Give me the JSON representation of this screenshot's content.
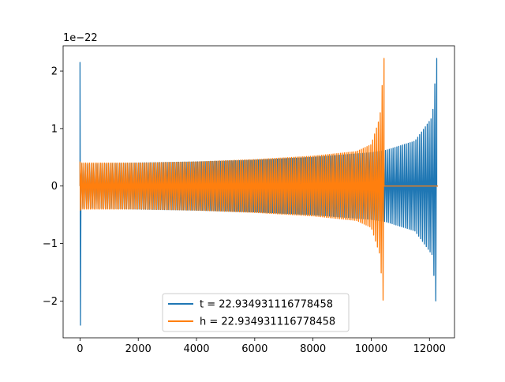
{
  "chart_data": {
    "type": "line",
    "title": "",
    "xlabel": "",
    "ylabel": "",
    "y_offset_label": "1e−22",
    "xlim": [
      -580,
      12860
    ],
    "ylim": [
      -2.64,
      2.44
    ],
    "x_ticks": [
      0,
      2000,
      4000,
      6000,
      8000,
      10000,
      12000
    ],
    "x_tick_labels": [
      "0",
      "2000",
      "4000",
      "6000",
      "8000",
      "10000",
      "12000"
    ],
    "y_ticks": [
      2,
      1,
      0,
      -1,
      -2
    ],
    "y_tick_labels": [
      "2",
      "1",
      "0",
      "−1",
      "−2"
    ],
    "grid": false,
    "legend_position": "lower center",
    "series": [
      {
        "name": "t = 22.934931116778458",
        "color": "#1f77b4",
        "signal": {
          "initial_spike": {
            "x": 0,
            "y_max": 2.15,
            "y_min": -2.42
          },
          "chirp_start_x": 0,
          "merger_x": 12250,
          "end_x": 12290,
          "amplitude_envelope_x": [
            0,
            1800,
            4000,
            6000,
            8000,
            10000,
            10500,
            11500,
            12100,
            12250
          ],
          "amplitude_envelope_y": [
            0.38,
            0.4,
            0.42,
            0.45,
            0.5,
            0.58,
            0.62,
            0.78,
            1.2,
            2.22
          ],
          "post_merger_value": 0
        }
      },
      {
        "name": "h = 22.934931116778458",
        "color": "#ff7f0e",
        "signal": {
          "initial_spike": {
            "x": 0,
            "y_max": 0.42,
            "y_min": -0.42
          },
          "chirp_start_x": 0,
          "merger_x": 10440,
          "end_x": 12290,
          "amplitude_envelope_x": [
            0,
            2000,
            4000,
            6000,
            8000,
            9500,
            10000,
            10300,
            10440
          ],
          "amplitude_envelope_y": [
            0.4,
            0.4,
            0.42,
            0.46,
            0.52,
            0.6,
            0.72,
            1.2,
            2.22
          ],
          "post_merger_value": 0
        }
      }
    ]
  }
}
